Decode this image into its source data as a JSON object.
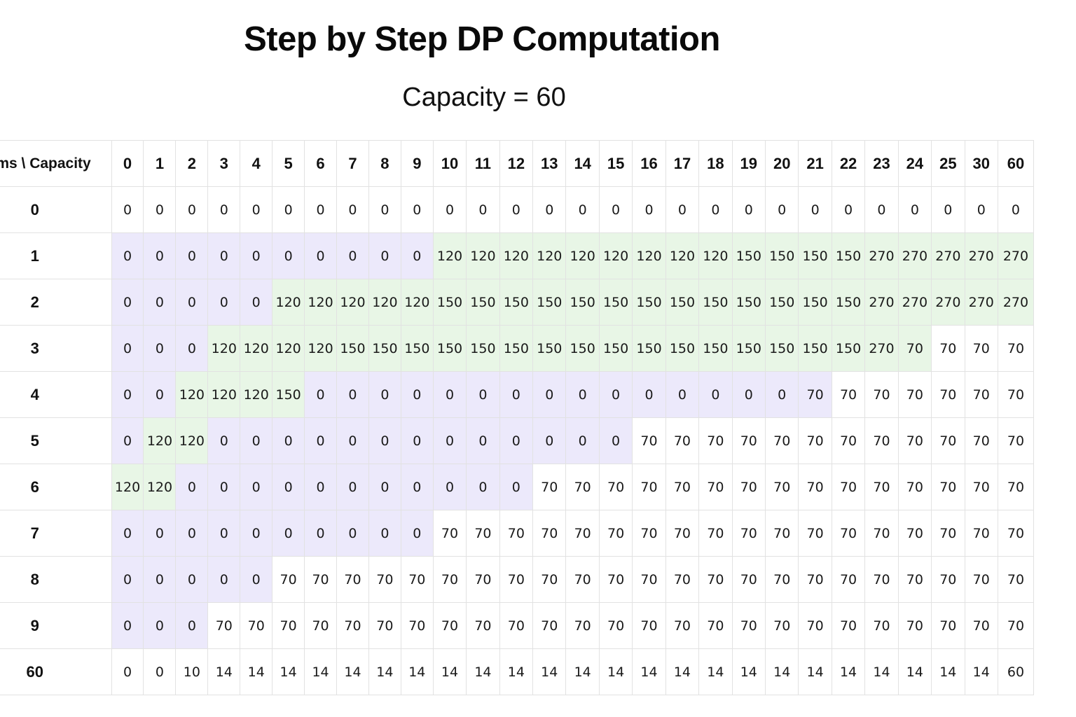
{
  "title": "Step by Step DP Computation",
  "subtitle": "Capacity = 60",
  "colors": {
    "lavender": "#ece9fb",
    "green": "#e8f6e6",
    "white": "#ffffff",
    "grid": "#e2e2e2"
  },
  "table": {
    "corner": "Items \\ Capacity",
    "columns": [
      "0",
      "1",
      "2",
      "3",
      "4",
      "5",
      "6",
      "7",
      "8",
      "9",
      "10",
      "11",
      "12",
      "13",
      "14",
      "15",
      "16",
      "17",
      "18",
      "19",
      "20",
      "21",
      "22",
      "23",
      "24",
      "25",
      "30",
      "60"
    ],
    "rows": [
      {
        "label": "0",
        "cells": [
          "0",
          "0",
          "0",
          "0",
          "0",
          "0",
          "0",
          "0",
          "0",
          "0",
          "0",
          "0",
          "0",
          "0",
          "0",
          "0",
          "0",
          "0",
          "0",
          "0",
          "0",
          "0",
          "0",
          "0",
          "0",
          "0",
          "0",
          "0"
        ],
        "fill": "wwwwwwwwwwwwwwwwwwwwwwwwwwww"
      },
      {
        "label": "1",
        "cells": [
          "0",
          "0",
          "0",
          "0",
          "0",
          "0",
          "0",
          "0",
          "0",
          "0",
          "120",
          "120",
          "120",
          "120",
          "120",
          "120",
          "120",
          "120",
          "120",
          "150",
          "150",
          "150",
          "150",
          "270",
          "270",
          "270",
          "270",
          "270"
        ],
        "fill": "llllllllllgggggggggggggggggg"
      },
      {
        "label": "2",
        "cells": [
          "0",
          "0",
          "0",
          "0",
          "0",
          "120",
          "120",
          "120",
          "120",
          "120",
          "150",
          "150",
          "150",
          "150",
          "150",
          "150",
          "150",
          "150",
          "150",
          "150",
          "150",
          "150",
          "150",
          "270",
          "270",
          "270",
          "270",
          "270"
        ],
        "fill": "lllllggggggggggggggggggggggg"
      },
      {
        "label": "3",
        "cells": [
          "0",
          "0",
          "0",
          "120",
          "120",
          "120",
          "120",
          "150",
          "150",
          "150",
          "150",
          "150",
          "150",
          "150",
          "150",
          "150",
          "150",
          "150",
          "150",
          "150",
          "150",
          "150",
          "150",
          "270",
          "70",
          "70",
          "70",
          "70"
        ],
        "fill": "lllggggggggggggggggggggggwwww"
      },
      {
        "label": "4",
        "cells": [
          "0",
          "0",
          "120",
          "120",
          "120",
          "150",
          "0",
          "0",
          "0",
          "0",
          "0",
          "0",
          "0",
          "0",
          "0",
          "0",
          "0",
          "0",
          "0",
          "0",
          "0",
          "70",
          "70",
          "70",
          "70",
          "70",
          "70",
          "70"
        ],
        "fill": "llggggllllllllllllllllwwwwwww"
      },
      {
        "label": "5",
        "cells": [
          "0",
          "120",
          "120",
          "0",
          "0",
          "0",
          "0",
          "0",
          "0",
          "0",
          "0",
          "0",
          "0",
          "0",
          "0",
          "0",
          "70",
          "70",
          "70",
          "70",
          "70",
          "70",
          "70",
          "70",
          "70",
          "70",
          "70",
          "70"
        ],
        "fill": "lgglllllllllllllwwwwwwwwwwww"
      },
      {
        "label": "6",
        "cells": [
          "120",
          "120",
          "0",
          "0",
          "0",
          "0",
          "0",
          "0",
          "0",
          "0",
          "0",
          "0",
          "0",
          "70",
          "70",
          "70",
          "70",
          "70",
          "70",
          "70",
          "70",
          "70",
          "70",
          "70",
          "70",
          "70",
          "70",
          "70"
        ],
        "fill": "gglllllllllllwwwwwwwwwwwwwww"
      },
      {
        "label": "7",
        "cells": [
          "0",
          "0",
          "0",
          "0",
          "0",
          "0",
          "0",
          "0",
          "0",
          "0",
          "70",
          "70",
          "70",
          "70",
          "70",
          "70",
          "70",
          "70",
          "70",
          "70",
          "70",
          "70",
          "70",
          "70",
          "70",
          "70",
          "70",
          "70"
        ],
        "fill": "llllllllllwwwwwwwwwwwwwwwwww"
      },
      {
        "label": "8",
        "cells": [
          "0",
          "0",
          "0",
          "0",
          "0",
          "70",
          "70",
          "70",
          "70",
          "70",
          "70",
          "70",
          "70",
          "70",
          "70",
          "70",
          "70",
          "70",
          "70",
          "70",
          "70",
          "70",
          "70",
          "70",
          "70",
          "70",
          "70",
          "70"
        ],
        "fill": "lllllwwwwwwwwwwwwwwwwwwwwwww"
      },
      {
        "label": "9",
        "cells": [
          "0",
          "0",
          "0",
          "70",
          "70",
          "70",
          "70",
          "70",
          "70",
          "70",
          "70",
          "70",
          "70",
          "70",
          "70",
          "70",
          "70",
          "70",
          "70",
          "70",
          "70",
          "70",
          "70",
          "70",
          "70",
          "70",
          "70",
          "70"
        ],
        "fill": "lllwwwwwwwwwwwwwwwwwwwwwwwww"
      },
      {
        "label": "60",
        "cells": [
          "0",
          "0",
          "10",
          "14",
          "14",
          "14",
          "14",
          "14",
          "14",
          "14",
          "14",
          "14",
          "14",
          "14",
          "14",
          "14",
          "14",
          "14",
          "14",
          "14",
          "14",
          "14",
          "14",
          "14",
          "14",
          "14",
          "14",
          "60"
        ],
        "fill": "wwwwwwwwwwwwwwwwwwwwwwwwwwww"
      }
    ]
  }
}
